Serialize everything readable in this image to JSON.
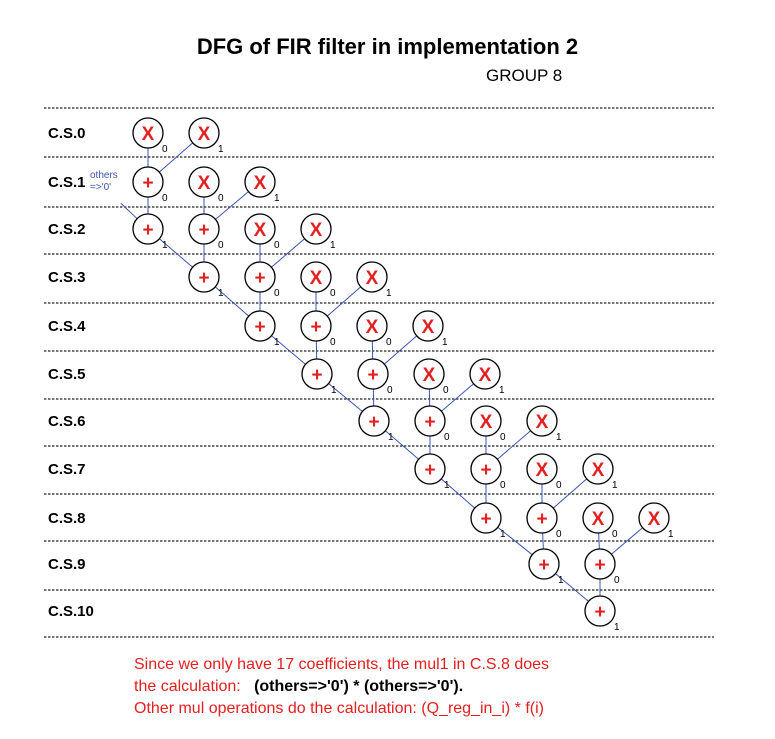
{
  "title": "DFG of FIR filter in implementation 2",
  "subtitle": "GROUP 8",
  "annotation": {
    "line1": "others",
    "line2": "=>'0'"
  },
  "mul_symbol": "X",
  "add_symbol": "+",
  "steps": [
    {
      "label": "C.S.0",
      "nodes": [
        {
          "op": "mul",
          "idx": "0"
        },
        {
          "op": "mul",
          "idx": "1"
        }
      ]
    },
    {
      "label": "C.S.1",
      "nodes": [
        {
          "op": "add",
          "idx": "0"
        },
        {
          "op": "mul",
          "idx": "0"
        },
        {
          "op": "mul",
          "idx": "1"
        }
      ]
    },
    {
      "label": "C.S.2",
      "nodes": [
        {
          "op": "add",
          "idx": "1"
        },
        {
          "op": "add",
          "idx": "0"
        },
        {
          "op": "mul",
          "idx": "0"
        },
        {
          "op": "mul",
          "idx": "1"
        }
      ]
    },
    {
      "label": "C.S.3",
      "nodes": [
        {
          "op": "add",
          "idx": "1"
        },
        {
          "op": "add",
          "idx": "0"
        },
        {
          "op": "mul",
          "idx": "0"
        },
        {
          "op": "mul",
          "idx": "1"
        }
      ]
    },
    {
      "label": "C.S.4",
      "nodes": [
        {
          "op": "add",
          "idx": "1"
        },
        {
          "op": "add",
          "idx": "0"
        },
        {
          "op": "mul",
          "idx": "0"
        },
        {
          "op": "mul",
          "idx": "1"
        }
      ]
    },
    {
      "label": "C.S.5",
      "nodes": [
        {
          "op": "add",
          "idx": "1"
        },
        {
          "op": "add",
          "idx": "0"
        },
        {
          "op": "mul",
          "idx": "0"
        },
        {
          "op": "mul",
          "idx": "1"
        }
      ]
    },
    {
      "label": "C.S.6",
      "nodes": [
        {
          "op": "add",
          "idx": "1"
        },
        {
          "op": "add",
          "idx": "0"
        },
        {
          "op": "mul",
          "idx": "0"
        },
        {
          "op": "mul",
          "idx": "1"
        }
      ]
    },
    {
      "label": "C.S.7",
      "nodes": [
        {
          "op": "add",
          "idx": "1"
        },
        {
          "op": "add",
          "idx": "0"
        },
        {
          "op": "mul",
          "idx": "0"
        },
        {
          "op": "mul",
          "idx": "1"
        }
      ]
    },
    {
      "label": "C.S.8",
      "nodes": [
        {
          "op": "add",
          "idx": "1"
        },
        {
          "op": "add",
          "idx": "0"
        },
        {
          "op": "mul",
          "idx": "0"
        },
        {
          "op": "mul",
          "idx": "1"
        }
      ]
    },
    {
      "label": "C.S.9",
      "nodes": [
        {
          "op": "add",
          "idx": "1"
        },
        {
          "op": "add",
          "idx": "0"
        }
      ]
    },
    {
      "label": "C.S.10",
      "nodes": [
        {
          "op": "add",
          "idx": "1"
        }
      ]
    }
  ],
  "notes": {
    "line1": "Since we only have 17 coefficients, the mul1 in C.S.8 does",
    "line2_prefix": "the calculation:   ",
    "line2_bold": "(others=>'0') * (others=>'0').",
    "line3": "Other mul operations do the calculation: (Q_reg_in_i) * f(i)"
  }
}
